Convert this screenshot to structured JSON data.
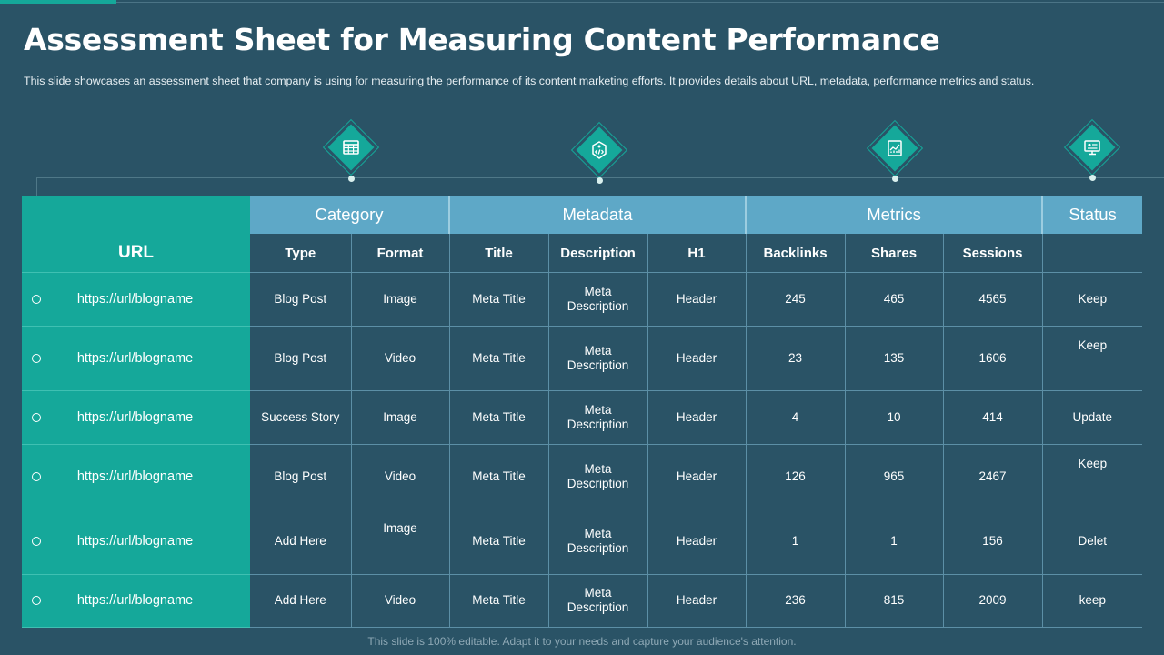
{
  "title": "Assessment Sheet for Measuring Content Performance",
  "subtitle": "This slide showcases an assessment sheet that company is using for measuring the performance  of its content marketing efforts.  It provides  details about URL, metadata, performance  metrics and status.",
  "footer": "This slide is 100% editable. Adapt it to your needs and capture your audience's attention.",
  "colors": {
    "background": "#2a5366",
    "accent": "#15a89a",
    "header_blue": "#5ea8c7"
  },
  "icons": [
    "calendar-table-icon",
    "code-tag-icon",
    "chart-monitor-icon",
    "monitor-profile-icon"
  ],
  "table": {
    "group_headers": [
      "Category",
      "Metadata",
      "Metrics",
      "Status"
    ],
    "url_header": "URL",
    "columns": [
      "Type",
      "Format",
      "Title",
      "Description",
      "H1",
      "Backlinks",
      "Shares",
      "Sessions"
    ],
    "rows": [
      [
        "https://url/blogname",
        "Blog Post",
        "Image",
        "Meta Title",
        "Meta Description",
        "Header",
        "245",
        "465",
        "4565",
        "Keep"
      ],
      [
        "https://url/blogname",
        "Blog Post",
        "Video",
        "Meta Title",
        "Meta Description",
        "Header",
        "23",
        "135",
        "1606",
        "Keep"
      ],
      [
        "https://url/blogname",
        "Success Story",
        "Image",
        "Meta Title",
        "Meta Description",
        "Header",
        "4",
        "10",
        "414",
        "Update"
      ],
      [
        "https://url/blogname",
        "Blog Post",
        "Video",
        "Meta Title",
        "Meta Description",
        "Header",
        "126",
        "965",
        "2467",
        "Keep"
      ],
      [
        "https://url/blogname",
        "Add Here",
        "Image",
        "Meta Title",
        "Meta Description",
        "Header",
        "1",
        "1",
        "156",
        "Delet"
      ],
      [
        "https://url/blogname",
        "Add Here",
        "Video",
        "Meta Title",
        "Meta Description",
        "Header",
        "236",
        "815",
        "2009",
        "keep"
      ]
    ]
  }
}
